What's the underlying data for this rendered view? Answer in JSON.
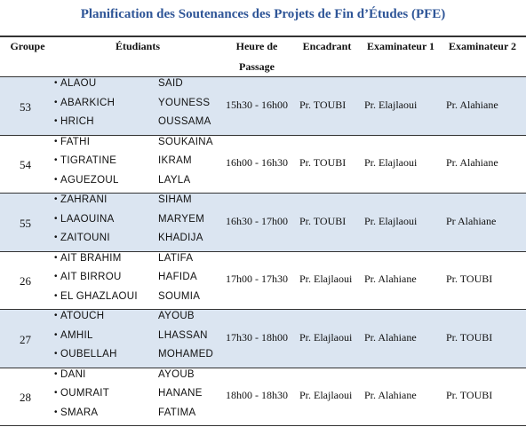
{
  "title": "Planification des Soutenances des Projets de Fin d’Études (PFE)",
  "table": {
    "header": [
      "Groupe",
      "Étudiants",
      "Heure de Passage",
      "Encadrant",
      "Examinateur 1",
      "Examinateur 2"
    ],
    "rows": [
      {
        "group": "53",
        "students": [
          {
            "last": "ALAOU",
            "first": "SAID"
          },
          {
            "last": "ABARKICH",
            "first": "YOUNESS"
          },
          {
            "last": "HRICH",
            "first": "OUSSAMA"
          }
        ],
        "time": "15h30 - 16h00",
        "supervisor": "Pr. TOUBI",
        "examiner1": "Pr. Elajlaoui",
        "examiner2": "Pr. Alahiane"
      },
      {
        "group": "54",
        "students": [
          {
            "last": "FATHI",
            "first": "SOUKAINA"
          },
          {
            "last": "TIGRATINE",
            "first": "IKRAM"
          },
          {
            "last": "AGUEZOUL",
            "first": "LAYLA"
          }
        ],
        "time": "16h00 - 16h30",
        "supervisor": "Pr. TOUBI",
        "examiner1": "Pr. Elajlaoui",
        "examiner2": "Pr. Alahiane"
      },
      {
        "group": "55",
        "students": [
          {
            "last": "ZAHRANI",
            "first": "SIHAM"
          },
          {
            "last": "LAAOUINA",
            "first": "MARYEM"
          },
          {
            "last": "ZAITOUNI",
            "first": "KHADIJA"
          }
        ],
        "time": "16h30 - 17h00",
        "supervisor": "Pr. TOUBI",
        "examiner1": "Pr. Elajlaoui",
        "examiner2": "Pr Alahiane"
      },
      {
        "group": "26",
        "students": [
          {
            "last": "AIT BRAHIM",
            "first": "LATIFA"
          },
          {
            "last": "AIT BIRROU",
            "first": "HAFIDA"
          },
          {
            "last": "EL GHAZLAOUI",
            "first": "SOUMIA"
          }
        ],
        "time": "17h00 - 17h30",
        "supervisor": "Pr. Elajlaoui",
        "examiner1": "Pr. Alahiane",
        "examiner2": "Pr. TOUBI"
      },
      {
        "group": "27",
        "students": [
          {
            "last": "ATOUCH",
            "first": "AYOUB"
          },
          {
            "last": "AMHIL",
            "first": "LHASSAN"
          },
          {
            "last": "OUBELLAH",
            "first": "MOHAMED"
          }
        ],
        "time": "17h30 - 18h00",
        "supervisor": "Pr. Elajlaoui",
        "examiner1": "Pr. Alahiane",
        "examiner2": "Pr. TOUBI"
      },
      {
        "group": "28",
        "students": [
          {
            "last": "DANI",
            "first": "AYOUB"
          },
          {
            "last": "OUMRAIT",
            "first": "HANANE"
          },
          {
            "last": "SMARA",
            "first": "FATIMA"
          }
        ],
        "time": "18h00 - 18h30",
        "supervisor": "Pr. Elajlaoui",
        "examiner1": "Pr. Alahiane",
        "examiner2": "Pr. TOUBI"
      }
    ]
  }
}
